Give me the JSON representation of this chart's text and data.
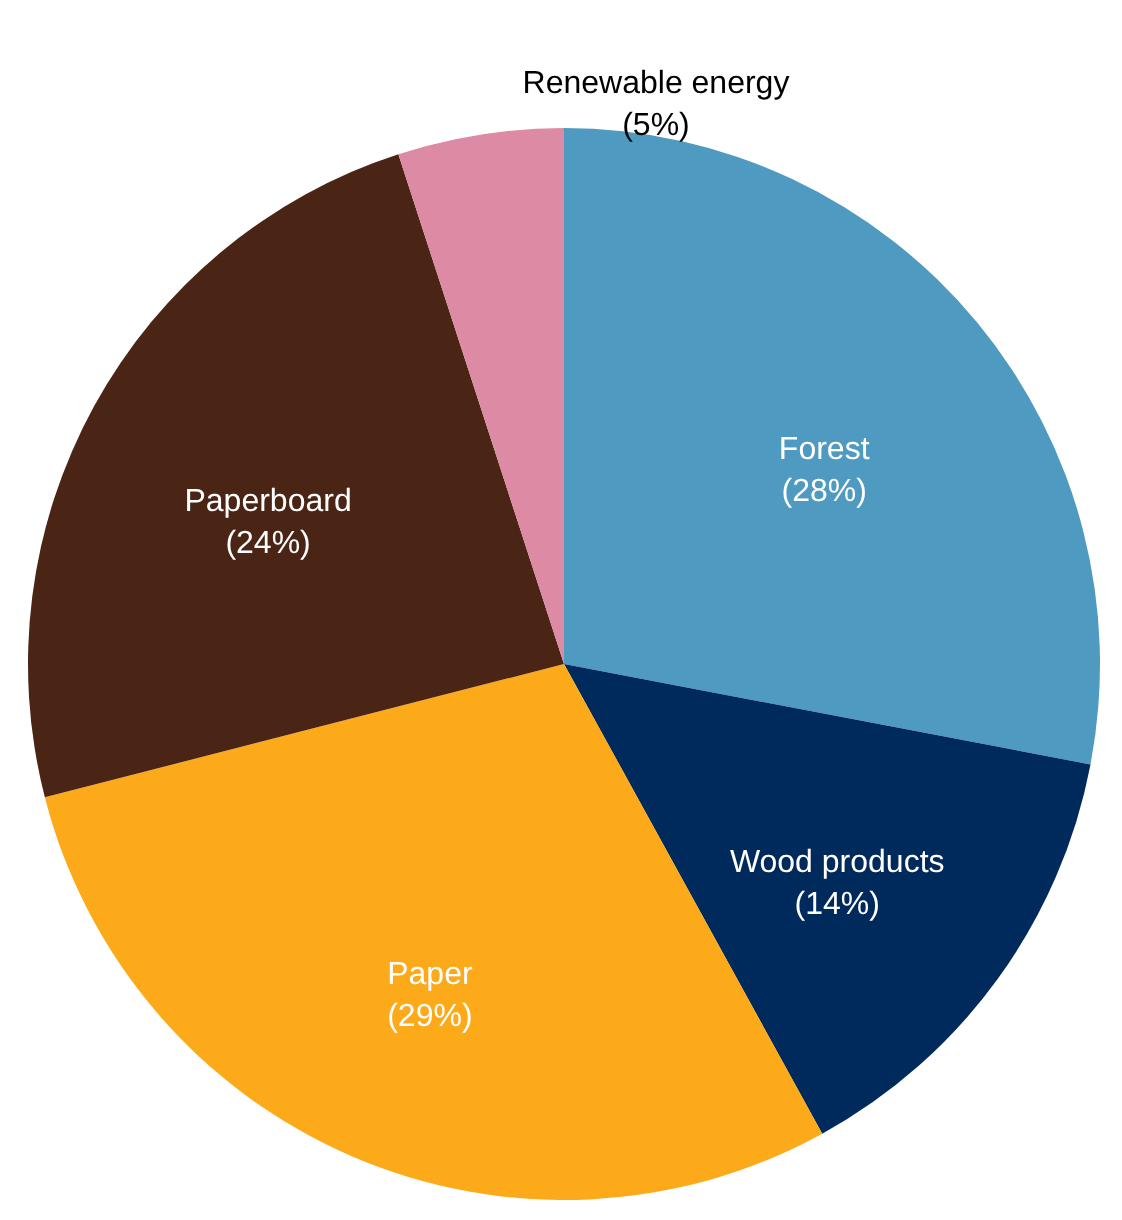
{
  "chart_data": {
    "type": "pie",
    "categories": [
      "Forest",
      "Wood products",
      "Paper",
      "Paperboard",
      "Renewable energy"
    ],
    "values": [
      28,
      14,
      29,
      24,
      5
    ],
    "colors": [
      "#4f9ac0",
      "#002a5c",
      "#fdaa1a",
      "#4a2414",
      "#dd8aa4"
    ],
    "value_labels": [
      "(28%)",
      "(14%)",
      "(29%)",
      "(24%)",
      "(5%)"
    ]
  }
}
